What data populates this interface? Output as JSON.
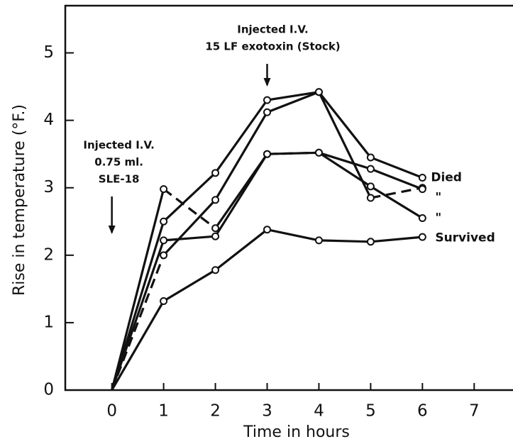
{
  "chart_data": {
    "type": "line",
    "xlabel": "Time in hours",
    "ylabel": "Rise in temperature (°F.)",
    "x": [
      0,
      1,
      2,
      3,
      4,
      5,
      6
    ],
    "xlim": [
      -0.9,
      7.75
    ],
    "ylim": [
      0,
      5.7
    ],
    "xticks": [
      0,
      1,
      2,
      3,
      4,
      5,
      6,
      7
    ],
    "yticks": [
      0,
      1,
      2,
      3,
      4,
      5
    ],
    "color": "#111111",
    "series": [
      {
        "name": "Died",
        "values": [
          0,
          2.5,
          3.22,
          4.3,
          4.42,
          3.45,
          3.15
        ],
        "dashed": []
      },
      {
        "name": "\"",
        "values": [
          0,
          2.0,
          2.82,
          4.12,
          4.42,
          2.85,
          3.0
        ],
        "dashed": [
          0,
          5
        ]
      },
      {
        "values": [
          0,
          2.98,
          2.4,
          3.5,
          3.52,
          3.28,
          2.98
        ],
        "dashed": [
          1
        ]
      },
      {
        "name": "\"",
        "values": [
          0,
          2.22,
          2.28,
          3.5,
          3.52,
          3.02,
          2.55
        ],
        "dashed": [
          3
        ]
      },
      {
        "name": "Survived",
        "values": [
          0,
          1.32,
          1.78,
          2.38,
          2.22,
          2.2,
          2.27
        ],
        "dashed": []
      }
    ],
    "annotations": [
      {
        "x": 0,
        "lines": [
          "Injected I.V.",
          "0.75 ml.",
          "SLE-18"
        ]
      },
      {
        "x": 3,
        "lines": [
          "Injected I.V.",
          "15 LF  exotoxin (Stock)"
        ]
      }
    ]
  }
}
